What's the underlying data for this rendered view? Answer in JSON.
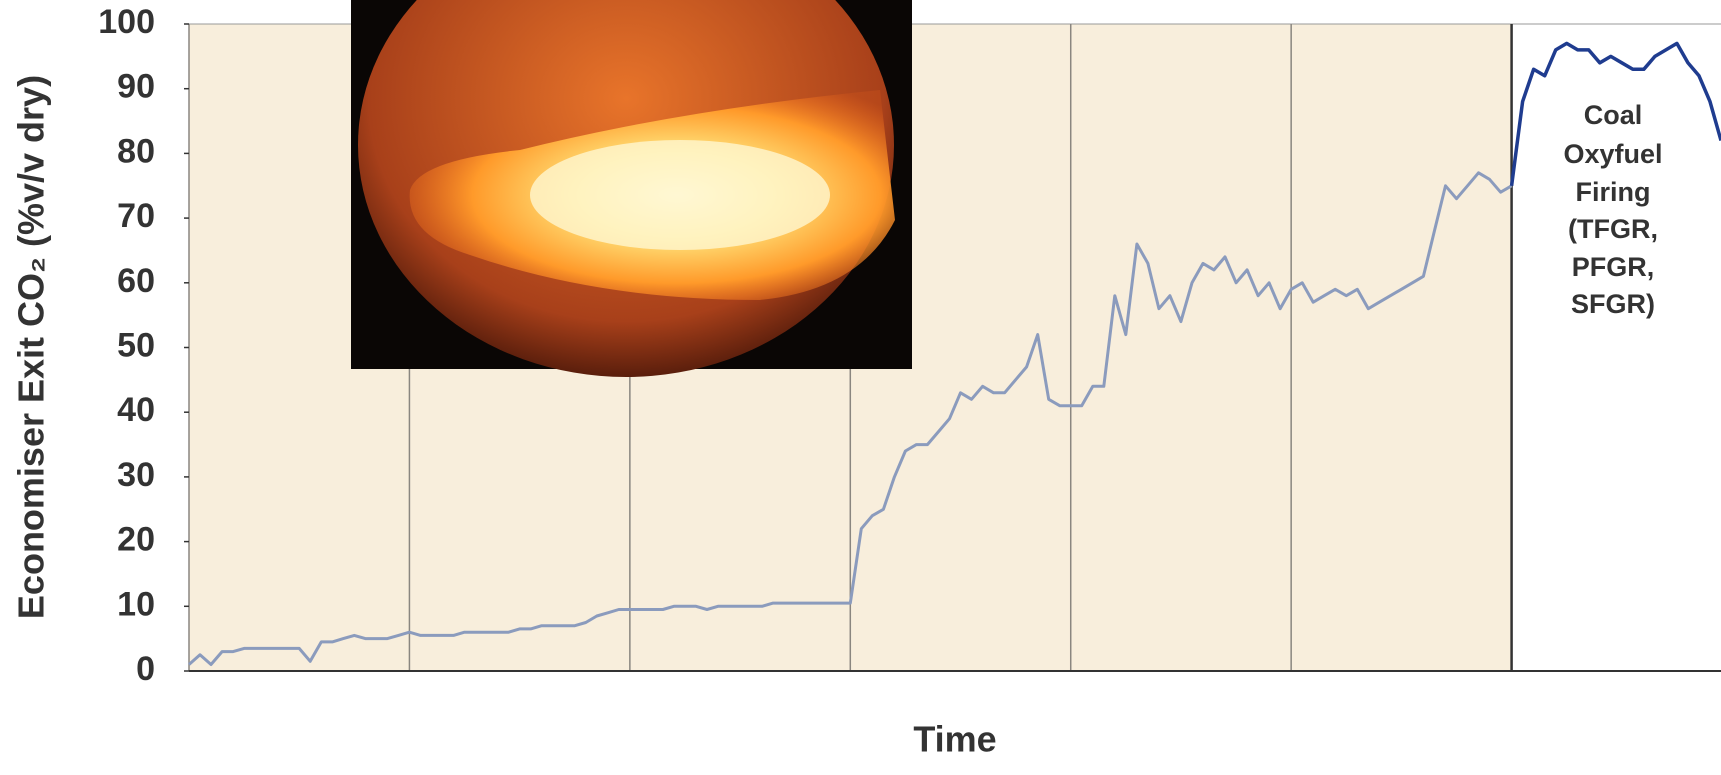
{
  "chart_data": {
    "type": "line",
    "y_label": "Economiser Exit CO₂ (%v/v dry)",
    "x_label": "Time",
    "annotation": [
      "Coal",
      "Oxyfuel",
      "Firing",
      "(TFGR,",
      "PFGR,",
      "SFGR)"
    ],
    "ylim": [
      0,
      100
    ],
    "yticks": [
      0,
      10,
      20,
      30,
      40,
      50,
      60,
      70,
      80,
      90,
      100
    ],
    "series": [
      {
        "color": "#8b9bbd",
        "values": [
          1,
          2.5,
          1,
          3,
          3,
          3.5,
          3.5,
          3.5,
          3.5,
          3.5,
          3.5,
          1.5,
          4.5,
          4.5,
          5,
          5.5,
          5,
          5,
          5,
          5.5,
          6,
          5.5,
          5.5,
          5.5,
          5.5,
          6,
          6,
          6,
          6,
          6,
          6.5,
          6.5,
          7,
          7,
          7,
          7,
          7.5,
          8.5,
          9,
          9.5,
          9.5,
          9.5,
          9.5,
          9.5,
          10,
          10,
          10,
          9.5,
          10,
          10,
          10,
          10,
          10,
          10.5,
          10.5,
          10.5,
          10.5,
          10.5,
          10.5,
          10.5,
          10.5,
          22,
          24,
          25,
          30,
          34,
          35,
          35,
          37,
          39,
          43,
          42,
          44,
          43,
          43,
          45,
          47,
          52,
          42,
          41,
          41,
          41,
          44,
          44,
          58,
          52,
          66,
          63,
          56,
          58,
          54,
          60,
          63,
          62,
          64,
          60,
          62,
          58,
          60,
          56,
          59,
          60,
          57,
          58,
          59,
          58,
          59,
          56,
          57,
          58,
          59,
          60,
          61,
          68,
          75,
          73,
          75,
          77,
          76,
          74,
          75,
          null,
          null,
          null,
          null,
          null,
          null,
          null,
          null,
          null,
          null,
          null,
          null,
          null,
          null,
          null,
          null,
          null,
          null,
          null
        ]
      },
      {
        "color": "#1f3c8f",
        "values": [
          null,
          null,
          null,
          null,
          null,
          null,
          null,
          null,
          null,
          null,
          null,
          null,
          null,
          null,
          null,
          null,
          null,
          null,
          null,
          null,
          null,
          null,
          null,
          null,
          null,
          null,
          null,
          null,
          null,
          null,
          null,
          null,
          null,
          null,
          null,
          null,
          null,
          null,
          null,
          null,
          null,
          null,
          null,
          null,
          null,
          null,
          null,
          null,
          null,
          null,
          null,
          null,
          null,
          null,
          null,
          null,
          null,
          null,
          null,
          null,
          null,
          null,
          null,
          null,
          null,
          null,
          null,
          null,
          null,
          null,
          null,
          null,
          null,
          null,
          null,
          null,
          null,
          null,
          null,
          null,
          null,
          null,
          null,
          null,
          null,
          null,
          null,
          null,
          null,
          null,
          null,
          null,
          null,
          null,
          null,
          null,
          null,
          null,
          null,
          null,
          null,
          null,
          null,
          null,
          null,
          null,
          null,
          null,
          null,
          null,
          null,
          null,
          null,
          null,
          null,
          null,
          null,
          null,
          null,
          null,
          75,
          88,
          93,
          92,
          96,
          97,
          96,
          96,
          94,
          95,
          94,
          93,
          93,
          95,
          96,
          97,
          94,
          92,
          88,
          82
        ]
      }
    ]
  }
}
